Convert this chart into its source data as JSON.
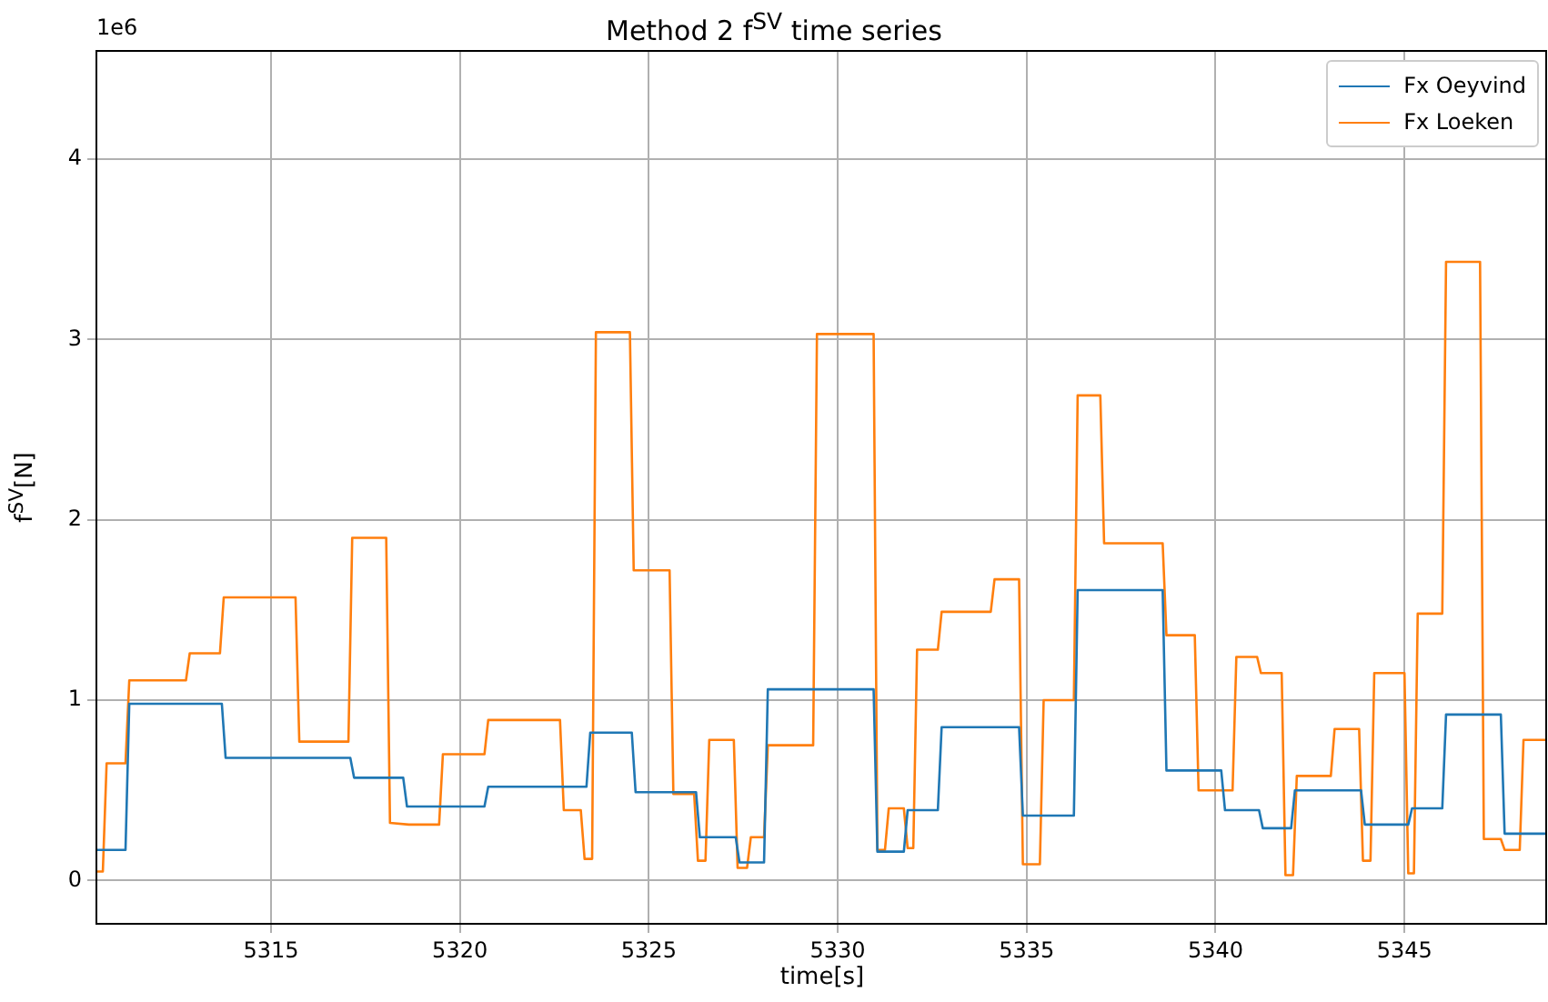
{
  "chart_data": {
    "type": "line",
    "title": "Method 2 f$^{SV}$ time series",
    "xlabel": "time[s]",
    "ylabel": "f$^{SV}$[N]",
    "annotations": [
      "1e6"
    ],
    "xlim": [
      5310.38,
      5348.75
    ],
    "xticks": [
      5315,
      5320,
      5325,
      5330,
      5335,
      5340,
      5345
    ],
    "ylim": [
      -0.24,
      4.6
    ],
    "yticks": [
      0,
      1,
      2,
      3,
      4
    ],
    "grid": true,
    "legend": "top right",
    "marker": "none",
    "line_style": "solid",
    "series": [
      {
        "name": "Fx Oeyvind",
        "color": "#1f77b4",
        "x": [
          5310.38,
          5311.15,
          5311.25,
          5313.7,
          5313.8,
          5317.1,
          5317.2,
          5318.5,
          5318.6,
          5320.65,
          5320.75,
          5323.35,
          5323.45,
          5324.55,
          5324.65,
          5326.25,
          5326.35,
          5327.3,
          5327.4,
          5328.05,
          5328.15,
          5330.95,
          5331.05,
          5331.75,
          5331.85,
          5332.65,
          5332.75,
          5334.8,
          5334.9,
          5336.25,
          5336.35,
          5338.6,
          5338.7,
          5340.15,
          5340.25,
          5341.15,
          5341.25,
          5342.0,
          5342.1,
          5343.85,
          5343.95,
          5345.1,
          5345.2,
          5346.0,
          5346.1,
          5347.55,
          5347.65,
          5348.75
        ],
        "values": [
          0.17,
          0.17,
          0.98,
          0.98,
          0.68,
          0.68,
          0.57,
          0.57,
          0.41,
          0.41,
          0.52,
          0.52,
          0.82,
          0.82,
          0.49,
          0.49,
          0.24,
          0.24,
          0.1,
          0.1,
          1.06,
          1.06,
          0.16,
          0.16,
          0.39,
          0.39,
          0.85,
          0.85,
          0.36,
          0.36,
          1.61,
          1.61,
          0.61,
          0.61,
          0.39,
          0.39,
          0.29,
          0.29,
          0.5,
          0.5,
          0.31,
          0.31,
          0.4,
          0.4,
          0.92,
          0.92,
          0.26,
          0.26
        ]
      },
      {
        "name": "Fx Loeken",
        "color": "#ff7f0e",
        "x": [
          5310.38,
          5310.55,
          5310.65,
          5311.15,
          5311.25,
          5312.75,
          5312.85,
          5313.65,
          5313.75,
          5315.65,
          5315.75,
          5317.05,
          5317.15,
          5318.05,
          5318.15,
          5318.65,
          5319.45,
          5319.55,
          5320.65,
          5320.75,
          5322.65,
          5322.75,
          5323.2,
          5323.3,
          5323.5,
          5323.6,
          5324.5,
          5324.6,
          5325.55,
          5325.65,
          5326.2,
          5326.3,
          5326.5,
          5326.6,
          5327.25,
          5327.35,
          5327.6,
          5327.7,
          5328.05,
          5328.15,
          5329.35,
          5329.45,
          5330.95,
          5331.05,
          5331.25,
          5331.35,
          5331.75,
          5331.85,
          5332.0,
          5332.1,
          5332.65,
          5332.75,
          5334.05,
          5334.15,
          5334.8,
          5334.9,
          5335.35,
          5335.45,
          5336.25,
          5336.35,
          5336.95,
          5337.05,
          5338.6,
          5338.7,
          5339.45,
          5339.55,
          5340.45,
          5340.55,
          5341.1,
          5341.2,
          5341.75,
          5341.85,
          5342.05,
          5342.15,
          5343.05,
          5343.15,
          5343.8,
          5343.9,
          5344.1,
          5344.2,
          5345.0,
          5345.1,
          5345.25,
          5345.35,
          5346.0,
          5346.1,
          5347.0,
          5347.1,
          5347.55,
          5347.65,
          5348.05,
          5348.15,
          5348.75
        ],
        "values": [
          0.05,
          0.05,
          0.65,
          0.65,
          1.11,
          1.11,
          1.26,
          1.26,
          1.57,
          1.57,
          0.77,
          0.77,
          1.9,
          1.9,
          0.32,
          0.31,
          0.31,
          0.7,
          0.7,
          0.89,
          0.89,
          0.39,
          0.39,
          0.12,
          0.12,
          3.04,
          3.04,
          1.72,
          1.72,
          0.48,
          0.48,
          0.11,
          0.11,
          0.78,
          0.78,
          0.07,
          0.07,
          0.24,
          0.24,
          0.75,
          0.75,
          3.03,
          3.03,
          0.17,
          0.17,
          0.4,
          0.4,
          0.18,
          0.18,
          1.28,
          1.28,
          1.49,
          1.49,
          1.67,
          1.67,
          0.09,
          0.09,
          1.0,
          1.0,
          2.69,
          2.69,
          1.87,
          1.87,
          1.36,
          1.36,
          0.5,
          0.5,
          1.24,
          1.24,
          1.15,
          1.15,
          0.03,
          0.03,
          0.58,
          0.58,
          0.84,
          0.84,
          0.11,
          0.11,
          1.15,
          1.15,
          0.04,
          0.04,
          1.48,
          1.48,
          3.43,
          3.43,
          0.23,
          0.23,
          0.17,
          0.17,
          0.78,
          0.78
        ]
      }
    ]
  }
}
